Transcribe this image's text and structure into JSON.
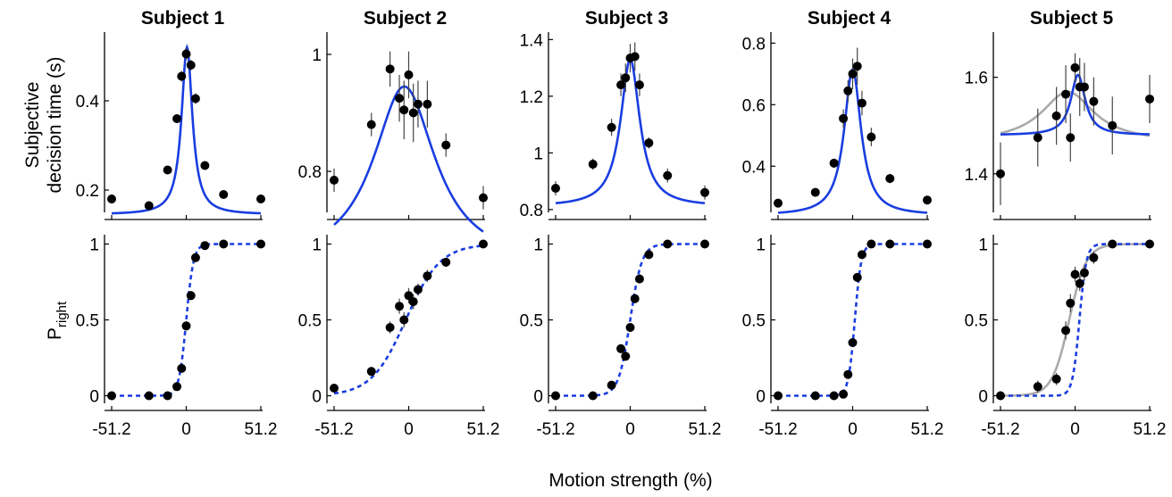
{
  "colors": {
    "fit": "#1a3de0",
    "alt_fit": "#aaaaaa",
    "points": "#000000"
  },
  "xlabel": "Motion strength (%)",
  "ylabel_top_line1": "Subjective",
  "ylabel_top_line2": "decision time (s)",
  "ylabel_bottom_main": "P",
  "ylabel_bottom_sub": "right",
  "chart_data": [
    {
      "type": "scatter",
      "panel": "Subject 1 decision time",
      "title": "Subject 1",
      "xlim": [
        -51.2,
        51.2
      ],
      "ylim": [
        0.15,
        0.55
      ],
      "xticks": [
        "-51.2",
        "0",
        "51.2"
      ],
      "xtick_values": [
        -51.2,
        0,
        51.2
      ],
      "yticks": [
        "0.2",
        "0.4"
      ],
      "ytick_values": [
        0.2,
        0.4
      ],
      "points": {
        "x": [
          -51.2,
          -25.6,
          -12.8,
          -6.4,
          -3.2,
          0,
          3.2,
          6.4,
          12.8,
          25.6,
          51.2
        ],
        "y": [
          0.18,
          0.165,
          0.245,
          0.36,
          0.455,
          0.505,
          0.48,
          0.405,
          0.255,
          0.19,
          0.18
        ],
        "err": [
          0.006,
          0.006,
          0.008,
          0.01,
          0.012,
          0.014,
          0.012,
          0.012,
          0.008,
          0.006,
          0.006
        ]
      },
      "fit": {
        "style": "solid",
        "base": 0.145,
        "amp": 0.375,
        "center": 0.5,
        "width": 4.5,
        "shape": "lorentz"
      }
    },
    {
      "type": "scatter",
      "panel": "Subject 2 decision time",
      "title": "Subject 2",
      "xlim": [
        -51.2,
        51.2
      ],
      "ylim": [
        0.73,
        1.035
      ],
      "xticks": [
        "-51.2",
        "0",
        "51.2"
      ],
      "xtick_values": [
        -51.2,
        0,
        51.2
      ],
      "yticks": [
        "0.8",
        "1"
      ],
      "ytick_values": [
        0.8,
        1.0
      ],
      "points": {
        "x": [
          -51.2,
          -25.6,
          -12.8,
          -6.4,
          -3.2,
          0,
          3.2,
          6.4,
          12.8,
          25.6,
          51.2
        ],
        "y": [
          0.785,
          0.88,
          0.975,
          0.925,
          0.905,
          0.965,
          0.9,
          0.915,
          0.915,
          0.845,
          0.755
        ],
        "err": [
          0.02,
          0.02,
          0.03,
          0.04,
          0.05,
          0.04,
          0.05,
          0.04,
          0.04,
          0.02,
          0.02
        ]
      },
      "fit": {
        "style": "solid",
        "base": 0.64,
        "amp": 0.305,
        "center": -3,
        "width": 26,
        "shape": "lorentz"
      }
    },
    {
      "type": "scatter",
      "panel": "Subject 3 decision time",
      "title": "Subject 3",
      "xlim": [
        -51.2,
        51.2
      ],
      "ylim": [
        0.79,
        1.42
      ],
      "xticks": [
        "-51.2",
        "0",
        "51.2"
      ],
      "xtick_values": [
        -51.2,
        0,
        51.2
      ],
      "yticks": [
        "0.8",
        "1",
        "1.2",
        "1.4"
      ],
      "ytick_values": [
        0.8,
        1.0,
        1.2,
        1.4
      ],
      "points": {
        "x": [
          -51.2,
          -25.6,
          -12.8,
          -6.4,
          -3.2,
          0,
          3.2,
          6.4,
          12.8,
          25.6,
          51.2
        ],
        "y": [
          0.875,
          0.96,
          1.09,
          1.24,
          1.265,
          1.335,
          1.34,
          1.24,
          1.035,
          0.92,
          0.86
        ],
        "err": [
          0.025,
          0.02,
          0.03,
          0.04,
          0.05,
          0.05,
          0.05,
          0.04,
          0.02,
          0.025,
          0.025
        ]
      },
      "fit": {
        "style": "solid",
        "base": 0.81,
        "amp": 0.52,
        "center": 0,
        "width": 8,
        "shape": "lorentz"
      }
    },
    {
      "type": "scatter",
      "panel": "Subject 4 decision time",
      "title": "Subject 4",
      "xlim": [
        -51.2,
        51.2
      ],
      "ylim": [
        0.25,
        0.83
      ],
      "xticks": [
        "-51.2",
        "0",
        "51.2"
      ],
      "xtick_values": [
        -51.2,
        0,
        51.2
      ],
      "yticks": [
        "0.4",
        "0.6",
        "0.8"
      ],
      "ytick_values": [
        0.4,
        0.6,
        0.8
      ],
      "points": {
        "x": [
          -51.2,
          -25.6,
          -12.8,
          -6.4,
          -3.2,
          0,
          3.2,
          6.4,
          12.8,
          25.6,
          51.2
        ],
        "y": [
          0.28,
          0.315,
          0.41,
          0.555,
          0.645,
          0.7,
          0.725,
          0.605,
          0.495,
          0.36,
          0.29
        ],
        "err": [
          0.008,
          0.008,
          0.015,
          0.03,
          0.035,
          0.05,
          0.06,
          0.04,
          0.03,
          0.015,
          0.01
        ]
      },
      "fit": {
        "style": "solid",
        "base": 0.24,
        "amp": 0.475,
        "center": 0,
        "width": 7,
        "shape": "lorentz"
      }
    },
    {
      "type": "scatter",
      "panel": "Subject 5 decision time",
      "title": "Subject 5",
      "xlim": [
        -51.2,
        51.2
      ],
      "ylim": [
        1.32,
        1.69
      ],
      "xticks": [
        "-51.2",
        "0",
        "51.2"
      ],
      "xtick_values": [
        -51.2,
        0,
        51.2
      ],
      "yticks": [
        "1.4",
        "1.6"
      ],
      "ytick_values": [
        1.4,
        1.6
      ],
      "points": {
        "x": [
          -51.2,
          -25.6,
          -12.8,
          -6.4,
          -3.2,
          0,
          3.2,
          6.4,
          12.8,
          25.6,
          51.2
        ],
        "y": [
          1.4,
          1.475,
          1.52,
          1.565,
          1.475,
          1.62,
          1.58,
          1.58,
          1.55,
          1.5,
          1.555
        ],
        "err": [
          0.065,
          0.06,
          0.06,
          0.06,
          0.05,
          0.03,
          0.06,
          0.05,
          0.05,
          0.06,
          0.05
        ]
      },
      "fit": {
        "style": "solid",
        "base": 1.48,
        "amp": 0.125,
        "center": 2,
        "width": 6,
        "shape": "lorentz"
      },
      "fit2": {
        "style": "solid",
        "base": 1.465,
        "amp": 0.105,
        "center": -5,
        "width": 22,
        "shape": "lorentz"
      }
    },
    {
      "type": "scatter",
      "panel": "Subject 1 choice",
      "xlim": [
        -51.2,
        51.2
      ],
      "ylim": [
        -0.05,
        1.05
      ],
      "xticks": [
        "-51.2",
        "0",
        "51.2"
      ],
      "xtick_values": [
        -51.2,
        0,
        51.2
      ],
      "yticks": [
        "0",
        "0.5",
        "1"
      ],
      "ytick_values": [
        0,
        0.5,
        1
      ],
      "points": {
        "x": [
          -51.2,
          -25.6,
          -12.8,
          -6.4,
          -3.2,
          0,
          3.2,
          6.4,
          12.8,
          25.6,
          51.2
        ],
        "y": [
          0,
          0,
          0,
          0.06,
          0.18,
          0.46,
          0.66,
          0.91,
          0.99,
          1,
          1
        ],
        "err": [
          0,
          0,
          0,
          0.01,
          0.02,
          0.03,
          0.03,
          0.02,
          0,
          0,
          0
        ]
      },
      "fit": {
        "style": "dashed",
        "center": 0,
        "slope": 0.4,
        "shape": "logistic"
      }
    },
    {
      "type": "scatter",
      "panel": "Subject 2 choice",
      "xlim": [
        -51.2,
        51.2
      ],
      "ylim": [
        -0.05,
        1.05
      ],
      "xticks": [
        "-51.2",
        "0",
        "51.2"
      ],
      "xtick_values": [
        -51.2,
        0,
        51.2
      ],
      "yticks": [
        "0",
        "0.5",
        "1"
      ],
      "ytick_values": [
        0,
        0.5,
        1
      ],
      "points": {
        "x": [
          -51.2,
          -25.6,
          -12.8,
          -6.4,
          -3.2,
          0,
          3.2,
          6.4,
          12.8,
          25.6,
          51.2
        ],
        "y": [
          0.05,
          0.16,
          0.45,
          0.59,
          0.5,
          0.66,
          0.62,
          0.7,
          0.79,
          0.88,
          1.0
        ],
        "err": [
          0.02,
          0.03,
          0.04,
          0.05,
          0.05,
          0.05,
          0.05,
          0.04,
          0.04,
          0.03,
          0
        ]
      },
      "fit": {
        "style": "dashed",
        "center": -2,
        "slope": 0.085,
        "shape": "logistic"
      }
    },
    {
      "type": "scatter",
      "panel": "Subject 3 choice",
      "xlim": [
        -51.2,
        51.2
      ],
      "ylim": [
        -0.05,
        1.05
      ],
      "xticks": [
        "-51.2",
        "0",
        "51.2"
      ],
      "xtick_values": [
        -51.2,
        0,
        51.2
      ],
      "yticks": [
        "0",
        "0.5",
        "1"
      ],
      "ytick_values": [
        0,
        0.5,
        1
      ],
      "points": {
        "x": [
          -51.2,
          -25.6,
          -12.8,
          -6.4,
          -3.2,
          0,
          3.2,
          6.4,
          12.8,
          25.6,
          51.2
        ],
        "y": [
          0,
          0,
          0.07,
          0.31,
          0.26,
          0.45,
          0.64,
          0.77,
          0.93,
          1,
          1
        ],
        "err": [
          0,
          0,
          0.01,
          0.03,
          0.03,
          0.03,
          0.03,
          0.03,
          0.02,
          0,
          0
        ]
      },
      "fit": {
        "style": "dashed",
        "center": 0,
        "slope": 0.25,
        "shape": "logistic"
      }
    },
    {
      "type": "scatter",
      "panel": "Subject 4 choice",
      "xlim": [
        -51.2,
        51.2
      ],
      "ylim": [
        -0.05,
        1.05
      ],
      "xticks": [
        "-51.2",
        "0",
        "51.2"
      ],
      "xtick_values": [
        -51.2,
        0,
        51.2
      ],
      "yticks": [
        "0",
        "0.5",
        "1"
      ],
      "ytick_values": [
        0,
        0.5,
        1
      ],
      "points": {
        "x": [
          -51.2,
          -25.6,
          -12.8,
          -6.4,
          -3.2,
          0,
          3.2,
          6.4,
          12.8,
          25.6,
          51.2
        ],
        "y": [
          0,
          0,
          0,
          0.01,
          0.14,
          0.35,
          0.78,
          0.93,
          1,
          1,
          1
        ],
        "err": [
          0,
          0,
          0,
          0.01,
          0.02,
          0.03,
          0.03,
          0.02,
          0,
          0,
          0
        ]
      },
      "fit": {
        "style": "dashed",
        "center": 1.5,
        "slope": 0.45,
        "shape": "logistic"
      }
    },
    {
      "type": "scatter",
      "panel": "Subject 5 choice",
      "xlim": [
        -51.2,
        51.2
      ],
      "ylim": [
        -0.05,
        1.05
      ],
      "xticks": [
        "-51.2",
        "0",
        "51.2"
      ],
      "xtick_values": [
        -51.2,
        0,
        51.2
      ],
      "yticks": [
        "0",
        "0.5",
        "1"
      ],
      "ytick_values": [
        0,
        0.5,
        1
      ],
      "points": {
        "x": [
          -51.2,
          -25.6,
          -12.8,
          -6.4,
          -3.2,
          0,
          3.2,
          6.4,
          12.8,
          25.6,
          51.2
        ],
        "y": [
          0,
          0.06,
          0.11,
          0.43,
          0.61,
          0.8,
          0.74,
          0.81,
          0.91,
          1,
          1
        ],
        "err": [
          0.03,
          0.04,
          0.04,
          0.06,
          0.06,
          0.05,
          0.05,
          0.05,
          0.04,
          0,
          0
        ]
      },
      "fit": {
        "style": "dashed",
        "center": 3,
        "slope": 0.42,
        "shape": "logistic"
      },
      "fit2": {
        "style": "solid",
        "center": -4,
        "slope": 0.17,
        "shape": "logistic"
      }
    }
  ]
}
